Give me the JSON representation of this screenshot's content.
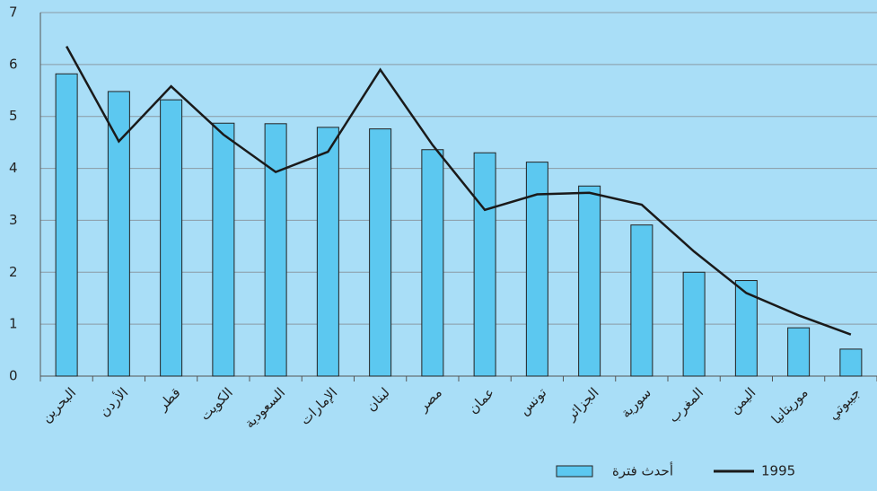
{
  "chart_data": {
    "type": "bar",
    "categories": [
      "البحرين",
      "الأردن",
      "قطر",
      "الكويت",
      "السعودية",
      "الإمارات",
      "لبنان",
      "مصر",
      "عمان",
      "تونس",
      "الجزائر",
      "سورية",
      "المغرب",
      "اليمن",
      "موريتانيا",
      "جيبوتي"
    ],
    "series": [
      {
        "name": "أحدث فترة",
        "type": "bar",
        "color": "#5cc8f0",
        "values": [
          5.82,
          5.48,
          5.32,
          4.87,
          4.86,
          4.79,
          4.76,
          4.36,
          4.3,
          4.12,
          3.66,
          2.91,
          2.0,
          1.84,
          0.93,
          0.52
        ]
      },
      {
        "name": "1995",
        "type": "line",
        "color": "#1a1a1a",
        "values": [
          6.35,
          4.52,
          5.58,
          4.65,
          3.93,
          4.32,
          5.9,
          4.45,
          3.2,
          3.5,
          3.53,
          3.3,
          2.4,
          1.6,
          1.17,
          0.8
        ]
      }
    ],
    "ylim": [
      0,
      7
    ],
    "yticks": [
      0,
      1,
      2,
      3,
      4,
      5,
      6,
      7
    ],
    "grid": true
  }
}
